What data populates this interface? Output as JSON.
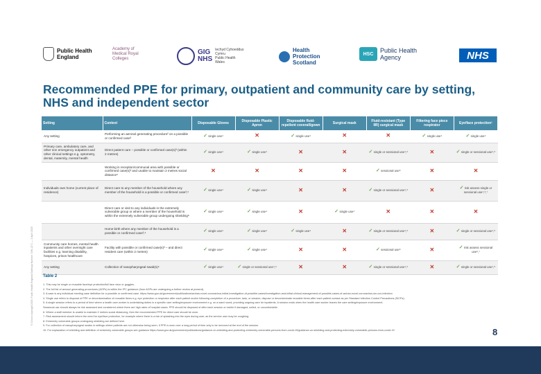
{
  "logos": {
    "phe": [
      "Public Health",
      "England"
    ],
    "aomrc": [
      "Academy of",
      "Medical Royal",
      "Colleges"
    ],
    "gig": {
      "mark": [
        "GIG",
        "NHS"
      ],
      "lines": [
        "Iechyd Cyhoeddus",
        "Cymru",
        "Public Health",
        "Wales"
      ]
    },
    "hps": [
      "Health",
      "Protection",
      "Scotland"
    ],
    "hsc": {
      "mark": "HSC",
      "lines": [
        "Public Health",
        "Agency"
      ]
    },
    "nhs": "NHS"
  },
  "title": "Recommended PPE for primary, outpatient and community care by setting, NHS and independent sector",
  "side_note": "© Crown copyright 2020. Public Health England Gateway Number: GW-1271 — 2 April 2020",
  "table": {
    "headers": [
      "Setting",
      "Context",
      "Disposable Gloves",
      "Disposable Plastic Apron",
      "Disposable fluid-repellent coverall/gown",
      "Surgical mask",
      "Fluid-resistant (Type IIR) surgical mask",
      "Filtering face piece respirator",
      "Eye/face protection¹"
    ],
    "rows": [
      {
        "setting": "Any setting",
        "context": "Performing an aerosol generating procedure² on a possible or confirmed case³",
        "cells": [
          {
            "t": "ok",
            "l": "single use⁴"
          },
          {
            "t": "no",
            "l": ""
          },
          {
            "t": "ok",
            "l": "single use⁴"
          },
          {
            "t": "no",
            "l": ""
          },
          {
            "t": "no",
            "l": ""
          },
          {
            "t": "ok",
            "l": "single use⁴"
          },
          {
            "t": "ok",
            "l": "single use⁴"
          }
        ]
      },
      {
        "setting": "Primary care, ambulatory care, and other non emergency outpatient and other clinical settings e.g. optometry, dental, maternity, mental health",
        "context": "Direct patient care – possible or confirmed case(s)³ (within 2 metres)",
        "cells": [
          {
            "t": "ok",
            "l": "single use⁴"
          },
          {
            "t": "ok",
            "l": "single use⁴"
          },
          {
            "t": "no",
            "l": ""
          },
          {
            "t": "no",
            "l": ""
          },
          {
            "t": "ok",
            "l": "single or sessional use⁴,⁵"
          },
          {
            "t": "no",
            "l": ""
          },
          {
            "t": "ok",
            "l": "single or sessional use⁴,⁵"
          }
        ]
      },
      {
        "setting": "",
        "context": "Working in reception/communal area with possible or confirmed case(s)³ and unable to maintain 2 metres social distance⁵",
        "cells": [
          {
            "t": "no",
            "l": ""
          },
          {
            "t": "no",
            "l": ""
          },
          {
            "t": "no",
            "l": ""
          },
          {
            "t": "no",
            "l": ""
          },
          {
            "t": "ok",
            "l": "sessional use⁵"
          },
          {
            "t": "no",
            "l": ""
          },
          {
            "t": "no",
            "l": ""
          }
        ]
      },
      {
        "setting": "Individuals own home (current place of residence)",
        "context": "Direct care to any member of the household where any member of the household is a possible or confirmed case³,⁶",
        "cells": [
          {
            "t": "ok",
            "l": "single use⁴"
          },
          {
            "t": "ok",
            "l": "single use⁴"
          },
          {
            "t": "no",
            "l": ""
          },
          {
            "t": "no",
            "l": ""
          },
          {
            "t": "ok",
            "l": "single or sessional use⁴,⁵"
          },
          {
            "t": "no",
            "l": ""
          },
          {
            "t": "ok",
            "l": "risk assess single or sessional use⁴,⁵,⁷"
          }
        ]
      },
      {
        "setting": "",
        "context": "Direct care or visit to any individuals in the extremely vulnerable group or where a member of the household is within the extremely vulnerable group undergoing shielding⁸",
        "cells": [
          {
            "t": "ok",
            "l": "single use⁴"
          },
          {
            "t": "ok",
            "l": "single use⁴"
          },
          {
            "t": "no",
            "l": ""
          },
          {
            "t": "ok",
            "l": "single use⁴"
          },
          {
            "t": "no",
            "l": ""
          },
          {
            "t": "no",
            "l": ""
          },
          {
            "t": "no",
            "l": ""
          }
        ]
      },
      {
        "setting": "",
        "context": "Home birth where any member of the household is a possible or confirmed case³,⁶",
        "cells": [
          {
            "t": "ok",
            "l": "single use⁴"
          },
          {
            "t": "ok",
            "l": "single use⁴"
          },
          {
            "t": "ok",
            "l": "single use⁴"
          },
          {
            "t": "no",
            "l": ""
          },
          {
            "t": "ok",
            "l": "single or sessional use⁴,⁵"
          },
          {
            "t": "no",
            "l": ""
          },
          {
            "t": "ok",
            "l": "single or sessional use⁴,⁵"
          }
        ]
      },
      {
        "setting": "Community care homes, mental health inpatients and other overnight care facilities e.g. learning disability, hospices, prison healthcare",
        "context": "Facility with possible or confirmed case(s)³ – and direct resident care (within 2 metres)",
        "cells": [
          {
            "t": "ok",
            "l": "single use⁴"
          },
          {
            "t": "ok",
            "l": "single use⁴"
          },
          {
            "t": "no",
            "l": ""
          },
          {
            "t": "no",
            "l": ""
          },
          {
            "t": "ok",
            "l": "sessional use⁵"
          },
          {
            "t": "no",
            "l": ""
          },
          {
            "t": "ok",
            "l": "risk assess sessional use⁵,⁷"
          }
        ]
      },
      {
        "setting": "Any setting",
        "context": "Collection of nasopharyngeal swab(s)⁹",
        "cells": [
          {
            "t": "ok",
            "l": "single use⁴"
          },
          {
            "t": "ok",
            "l": "single or sessional use⁴,⁵"
          },
          {
            "t": "no",
            "l": ""
          },
          {
            "t": "no",
            "l": ""
          },
          {
            "t": "ok",
            "l": "single or sessional use⁴,⁵"
          },
          {
            "t": "no",
            "l": ""
          },
          {
            "t": "ok",
            "l": "single or sessional use⁴,⁵"
          }
        ]
      }
    ]
  },
  "table_caption": "Table 2",
  "notes": [
    "1. This may be single or reusable face/eye protection/full face visor or goggles.",
    "2. The full list of aerosol generating procedures (AGPs) is within the IPC guidance (from AGPs are undergoing a further review at present).",
    "3. A case is any individual meeting case definition for a possible or confirmed case. https://www.gov.uk/government/publications/wuhan-novel-coronavirus-initial-investigation-of-possible-cases/investigation-and-initial-clinical-management-of-possible-cases-of-wuhan-novel-coronavirus-wn-cov-infection",
    "4. Single use refers to disposal of PPE or decontamination of reusable items e.g. eye protection or respirator after each patient and/or following completion of a procedure, task, or session; dispose or decontaminate reusable items after each patient contact as per Standard Infection Control Precautions (SICPs).",
    "5. A single session refers to a period of time where a health care worker is undertaking duties in a specific care setting/exposure environment e.g. on a ward round; providing ongoing care for inpatients. A session ends when the health care worker leaves the care setting/exposure environment.",
    "   Sessional use should always be risk assessed and considered where there are high rates of hospital cases. PPE should be disposed of after each session or earlier if damaged, soiled, or uncomfortable.",
    "6. Where a staff member is unable to maintain 2 metres social distancing, then the recommended PPE for direct care should be worn.",
    "7. Risk assessment should inform the need for eye/face protection, for example where there is a risk of splashing into the eyes during care; as the service user may be coughing.",
    "8. Extremely vulnerable groups undergoing shielding are defined here.",
    "9. For collection of nasopharyngeal swabs in settings where patients are not otherwise being seen, if PPE is worn over a long period of time only to be removed at the end of the session.",
    "10. For explanation of shielding and definition of extremely vulnerable groups see guidance https://www.gov.uk/government/publications/guidance-on-shielding-and-protecting-extremely-vulnerable-persons-from-covid-19/guidance-on-shielding-and-protecting-extremely-vulnerable-persons-from-covid-19"
  ],
  "page_number": "8",
  "colors": {
    "title": "#1a5e86",
    "header": "#4a8ca8",
    "tick": "#6aa84f",
    "cross": "#c0392b",
    "footer": "#1f3a5a"
  }
}
